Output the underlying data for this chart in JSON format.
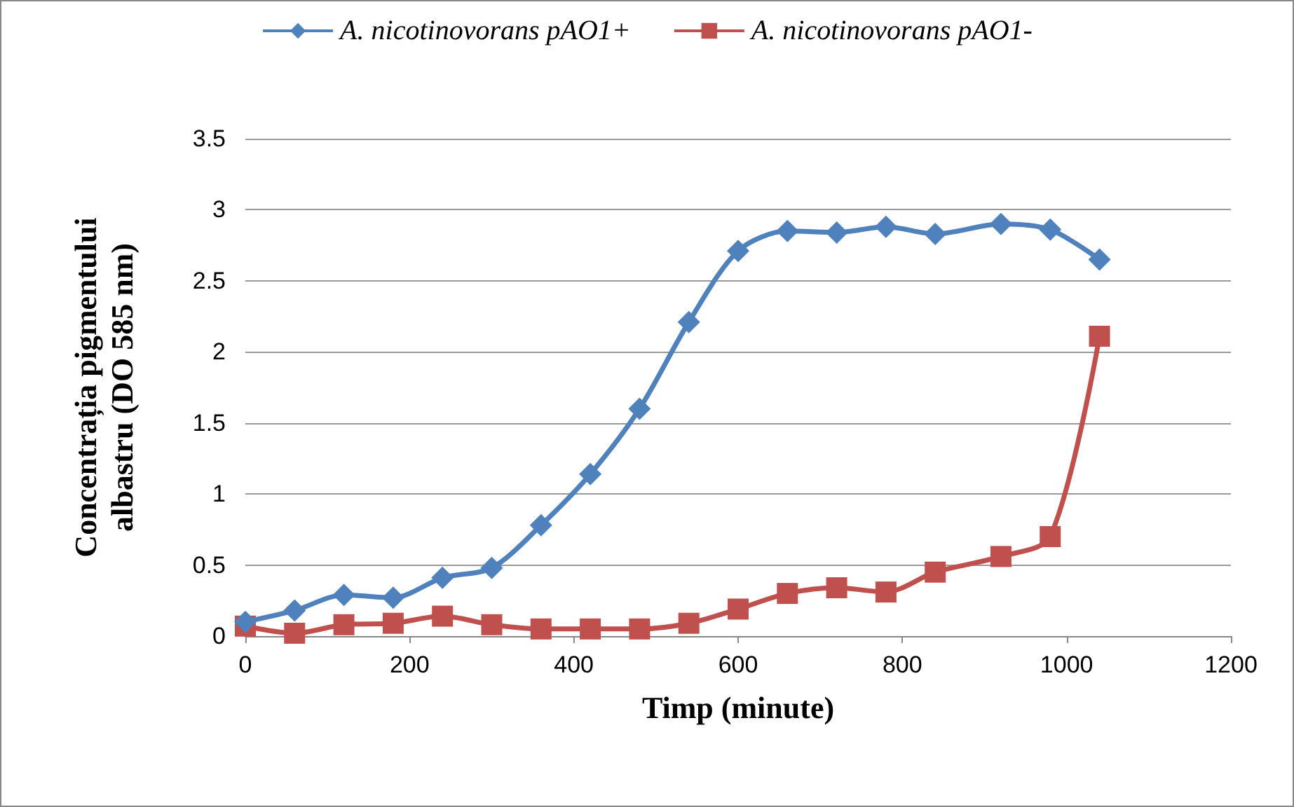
{
  "chart_data": {
    "type": "line",
    "xlabel": "Timp (minute)",
    "ylabel": "Concentrația pigmentului albastru (DO 585 nm)",
    "x": [
      0,
      60,
      120,
      180,
      240,
      300,
      360,
      420,
      480,
      540,
      600,
      660,
      720,
      780,
      840,
      920,
      980,
      1040
    ],
    "series": [
      {
        "name": "A. nicotinovorans pAO1+",
        "color": "#4f81bd",
        "marker": "diamond",
        "values": [
          0.1,
          0.18,
          0.29,
          0.27,
          0.41,
          0.48,
          0.78,
          1.14,
          1.6,
          2.21,
          2.71,
          2.85,
          2.84,
          2.88,
          2.83,
          2.9,
          2.86,
          2.65
        ]
      },
      {
        "name": "A. nicotinovorans pAO1-",
        "color": "#c0504d",
        "marker": "square",
        "values": [
          0.07,
          0.02,
          0.08,
          0.09,
          0.14,
          0.08,
          0.05,
          0.05,
          0.05,
          0.09,
          0.19,
          0.3,
          0.34,
          0.31,
          0.45,
          0.56,
          0.7,
          2.11
        ]
      }
    ],
    "xlim": [
      0,
      1200
    ],
    "xticks": [
      0,
      200,
      400,
      600,
      800,
      1000,
      1200
    ],
    "ylim": [
      0,
      3.5
    ],
    "yticks": [
      0,
      0.5,
      1,
      1.5,
      2,
      2.5,
      3,
      3.5
    ],
    "grid": "y",
    "legend": "top"
  }
}
